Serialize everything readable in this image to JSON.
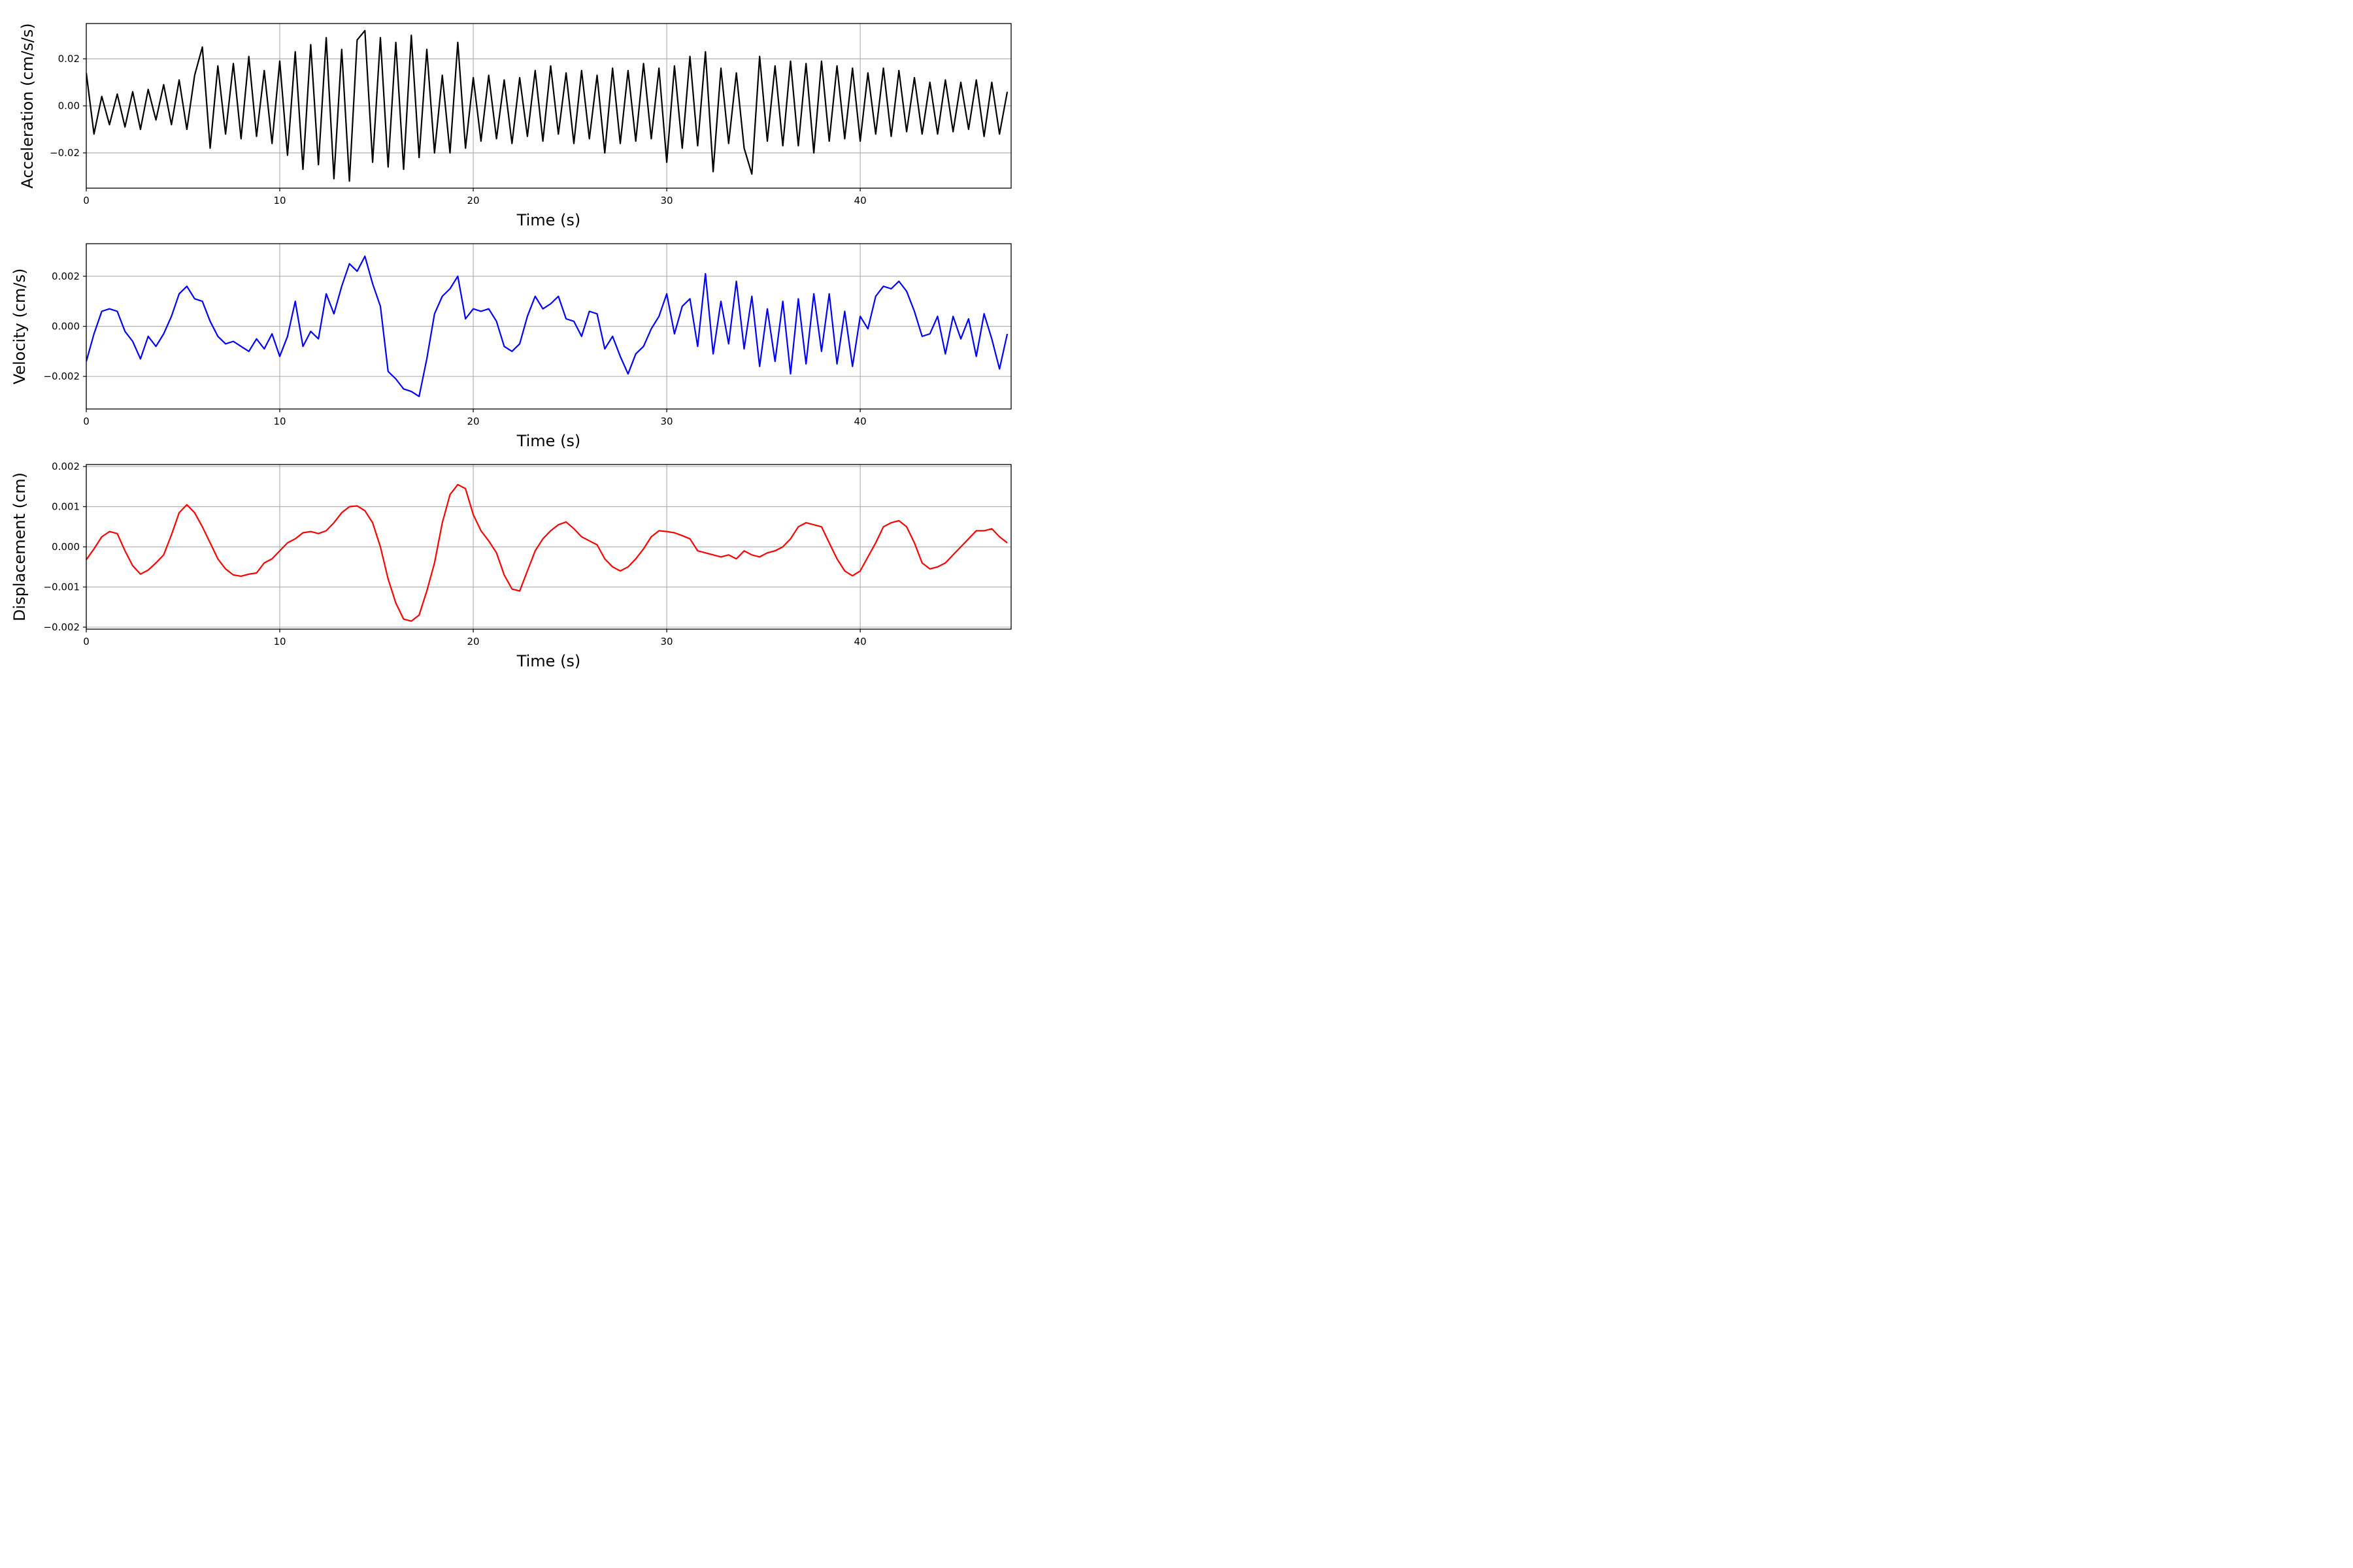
{
  "chart_data": [
    {
      "type": "line",
      "xlabel": "Time (s)",
      "ylabel": "Acceleration (cm/s/s)",
      "xlim": [
        0,
        47.8
      ],
      "ylim": [
        -0.035,
        0.035
      ],
      "xticks": [
        0,
        10,
        20,
        30,
        40
      ],
      "xtick_labels": [
        "0",
        "10",
        "20",
        "30",
        "40"
      ],
      "yticks": [
        -0.02,
        0.0,
        0.02
      ],
      "ytick_labels": [
        "−0.02",
        "0.00",
        "0.02"
      ],
      "grid": true,
      "series": [
        {
          "color": "#000000",
          "x": [
            0,
            0.4,
            0.8,
            1.2,
            1.6,
            2.0,
            2.4,
            2.8,
            3.2,
            3.6,
            4.0,
            4.4,
            4.8,
            5.2,
            5.6,
            6.0,
            6.4,
            6.8,
            7.2,
            7.6,
            8.0,
            8.4,
            8.8,
            9.2,
            9.6,
            10.0,
            10.4,
            10.8,
            11.2,
            11.6,
            12.0,
            12.4,
            12.8,
            13.2,
            13.6,
            14.0,
            14.4,
            14.8,
            15.2,
            15.6,
            16.0,
            16.4,
            16.8,
            17.2,
            17.6,
            18.0,
            18.4,
            18.8,
            19.2,
            19.6,
            20.0,
            20.4,
            20.8,
            21.2,
            21.6,
            22.0,
            22.4,
            22.8,
            23.2,
            23.6,
            24.0,
            24.4,
            24.8,
            25.2,
            25.6,
            26.0,
            26.4,
            26.8,
            27.2,
            27.6,
            28.0,
            28.4,
            28.8,
            29.2,
            29.6,
            30.0,
            30.4,
            30.8,
            31.2,
            31.6,
            32.0,
            32.4,
            32.8,
            33.2,
            33.6,
            34.0,
            34.4,
            34.8,
            35.2,
            35.6,
            36.0,
            36.4,
            36.8,
            37.2,
            37.6,
            38.0,
            38.4,
            38.8,
            39.2,
            39.6,
            40.0,
            40.4,
            40.8,
            41.2,
            41.6,
            42.0,
            42.4,
            42.8,
            43.2,
            43.6,
            44.0,
            44.4,
            44.8,
            45.2,
            45.6,
            46.0,
            46.4,
            46.8,
            47.2,
            47.6
          ],
          "y": [
            0.014,
            -0.012,
            0.004,
            -0.008,
            0.005,
            -0.009,
            0.006,
            -0.01,
            0.007,
            -0.006,
            0.009,
            -0.008,
            0.011,
            -0.01,
            0.013,
            0.025,
            -0.018,
            0.017,
            -0.012,
            0.018,
            -0.014,
            0.021,
            -0.013,
            0.015,
            -0.016,
            0.019,
            -0.021,
            0.023,
            -0.027,
            0.026,
            -0.025,
            0.029,
            -0.031,
            0.024,
            -0.032,
            0.028,
            0.032,
            -0.024,
            0.029,
            -0.026,
            0.027,
            -0.027,
            0.03,
            -0.022,
            0.024,
            -0.02,
            0.013,
            -0.02,
            0.027,
            -0.018,
            0.012,
            -0.015,
            0.013,
            -0.014,
            0.011,
            -0.016,
            0.012,
            -0.013,
            0.015,
            -0.015,
            0.017,
            -0.012,
            0.014,
            -0.016,
            0.015,
            -0.014,
            0.013,
            -0.02,
            0.016,
            -0.016,
            0.015,
            -0.015,
            0.018,
            -0.014,
            0.016,
            -0.024,
            0.017,
            -0.018,
            0.021,
            -0.017,
            0.023,
            -0.028,
            0.016,
            -0.016,
            0.014,
            -0.018,
            -0.029,
            0.021,
            -0.015,
            0.017,
            -0.017,
            0.019,
            -0.017,
            0.018,
            -0.02,
            0.019,
            -0.015,
            0.017,
            -0.014,
            0.016,
            -0.015,
            0.014,
            -0.012,
            0.016,
            -0.013,
            0.015,
            -0.011,
            0.012,
            -0.012,
            0.01,
            -0.012,
            0.011,
            -0.011,
            0.01,
            -0.01,
            0.011,
            -0.013,
            0.01,
            -0.012,
            0.006
          ]
        }
      ]
    },
    {
      "type": "line",
      "xlabel": "Time (s)",
      "ylabel": "Velocity (cm/s)",
      "xlim": [
        0,
        47.8
      ],
      "ylim": [
        -0.0033,
        0.0033
      ],
      "xticks": [
        0,
        10,
        20,
        30,
        40
      ],
      "xtick_labels": [
        "0",
        "10",
        "20",
        "30",
        "40"
      ],
      "yticks": [
        -0.002,
        0.0,
        0.002
      ],
      "ytick_labels": [
        "−0.002",
        "0.000",
        "0.002"
      ],
      "grid": true,
      "series": [
        {
          "color": "#0000ff",
          "x": [
            0,
            0.4,
            0.8,
            1.2,
            1.6,
            2.0,
            2.4,
            2.8,
            3.2,
            3.6,
            4.0,
            4.4,
            4.8,
            5.2,
            5.6,
            6.0,
            6.4,
            6.8,
            7.2,
            7.6,
            8.0,
            8.4,
            8.8,
            9.2,
            9.6,
            10.0,
            10.4,
            10.8,
            11.2,
            11.6,
            12.0,
            12.4,
            12.8,
            13.2,
            13.6,
            14.0,
            14.4,
            14.8,
            15.2,
            15.6,
            16.0,
            16.4,
            16.8,
            17.2,
            17.6,
            18.0,
            18.4,
            18.8,
            19.2,
            19.6,
            20.0,
            20.4,
            20.8,
            21.2,
            21.6,
            22.0,
            22.4,
            22.8,
            23.2,
            23.6,
            24.0,
            24.4,
            24.8,
            25.2,
            25.6,
            26.0,
            26.4,
            26.8,
            27.2,
            27.6,
            28.0,
            28.4,
            28.8,
            29.2,
            29.6,
            30.0,
            30.4,
            30.8,
            31.2,
            31.6,
            32.0,
            32.4,
            32.8,
            33.2,
            33.6,
            34.0,
            34.4,
            34.8,
            35.2,
            35.6,
            36.0,
            36.4,
            36.8,
            37.2,
            37.6,
            38.0,
            38.4,
            38.8,
            39.2,
            39.6,
            40.0,
            40.4,
            40.8,
            41.2,
            41.6,
            42.0,
            42.4,
            42.8,
            43.2,
            43.6,
            44.0,
            44.4,
            44.8,
            45.2,
            45.6,
            46.0,
            46.4,
            46.8,
            47.2,
            47.6
          ],
          "y": [
            -0.0014,
            -0.0003,
            0.0006,
            0.0007,
            0.0006,
            -0.0002,
            -0.0006,
            -0.0013,
            -0.0004,
            -0.0008,
            -0.0003,
            0.0004,
            0.0013,
            0.0016,
            0.0011,
            0.001,
            0.0002,
            -0.0004,
            -0.0007,
            -0.0006,
            -0.0008,
            -0.001,
            -0.0005,
            -0.0009,
            -0.0003,
            -0.0012,
            -0.0004,
            0.001,
            -0.0008,
            -0.0002,
            -0.0005,
            0.0013,
            0.0005,
            0.0016,
            0.0025,
            0.0022,
            0.0028,
            0.0017,
            0.0008,
            -0.0018,
            -0.0021,
            -0.0025,
            -0.0026,
            -0.0028,
            -0.0013,
            0.0005,
            0.0012,
            0.0015,
            0.002,
            0.0003,
            0.0007,
            0.0006,
            0.0007,
            0.0002,
            -0.0008,
            -0.001,
            -0.0007,
            0.0004,
            0.0012,
            0.0007,
            0.0009,
            0.0012,
            0.0003,
            0.0002,
            -0.0004,
            0.0006,
            0.0005,
            -0.0009,
            -0.0004,
            -0.0012,
            -0.0019,
            -0.0011,
            -0.0008,
            -0.0001,
            0.0004,
            0.0013,
            -0.0003,
            0.0008,
            0.0011,
            -0.0008,
            0.0021,
            -0.0011,
            0.001,
            -0.0007,
            0.0018,
            -0.0009,
            0.0012,
            -0.0016,
            0.0007,
            -0.0014,
            0.001,
            -0.0019,
            0.0011,
            -0.0015,
            0.0013,
            -0.001,
            0.0013,
            -0.0015,
            0.0006,
            -0.0016,
            0.0004,
            -0.0001,
            0.0012,
            0.0016,
            0.0015,
            0.0018,
            0.0014,
            0.0006,
            -0.0004,
            -0.0003,
            0.0004,
            -0.0011,
            0.0004,
            -0.0005,
            0.0003,
            -0.0012,
            0.0005,
            -0.0005,
            -0.0017,
            -0.0003
          ]
        }
      ]
    },
    {
      "type": "line",
      "xlabel": "Time (s)",
      "ylabel": "Displacement (cm)",
      "xlim": [
        0,
        47.8
      ],
      "ylim": [
        -0.00205,
        0.00205
      ],
      "xticks": [
        0,
        10,
        20,
        30,
        40
      ],
      "xtick_labels": [
        "0",
        "10",
        "20",
        "30",
        "40"
      ],
      "yticks": [
        -0.002,
        -0.001,
        0.0,
        0.001,
        0.002
      ],
      "ytick_labels": [
        "−0.002",
        "−0.001",
        "0.000",
        "0.001",
        "0.002"
      ],
      "grid": true,
      "series": [
        {
          "color": "#ff0000",
          "x": [
            0,
            0.4,
            0.8,
            1.2,
            1.6,
            2.0,
            2.4,
            2.8,
            3.2,
            3.6,
            4.0,
            4.4,
            4.8,
            5.2,
            5.6,
            6.0,
            6.4,
            6.8,
            7.2,
            7.6,
            8.0,
            8.4,
            8.8,
            9.2,
            9.6,
            10.0,
            10.4,
            10.8,
            11.2,
            11.6,
            12.0,
            12.4,
            12.8,
            13.2,
            13.6,
            14.0,
            14.4,
            14.8,
            15.2,
            15.6,
            16.0,
            16.4,
            16.8,
            17.2,
            17.6,
            18.0,
            18.4,
            18.8,
            19.2,
            19.6,
            20.0,
            20.4,
            20.8,
            21.2,
            21.6,
            22.0,
            22.4,
            22.8,
            23.2,
            23.6,
            24.0,
            24.4,
            24.8,
            25.2,
            25.6,
            26.0,
            26.4,
            26.8,
            27.2,
            27.6,
            28.0,
            28.4,
            28.8,
            29.2,
            29.6,
            30.0,
            30.4,
            30.8,
            31.2,
            31.6,
            32.0,
            32.4,
            32.8,
            33.2,
            33.6,
            34.0,
            34.4,
            34.8,
            35.2,
            35.6,
            36.0,
            36.4,
            36.8,
            37.2,
            37.6,
            38.0,
            38.4,
            38.8,
            39.2,
            39.6,
            40.0,
            40.4,
            40.8,
            41.2,
            41.6,
            42.0,
            42.4,
            42.8,
            43.2,
            43.6,
            44.0,
            44.4,
            44.8,
            45.2,
            45.6,
            46.0,
            46.4,
            46.8,
            47.2,
            47.6
          ],
          "y": [
            -0.00032,
            -5e-05,
            0.00025,
            0.00038,
            0.00033,
            -0.0001,
            -0.00047,
            -0.00068,
            -0.00058,
            -0.0004,
            -0.0002,
            0.0003,
            0.00085,
            0.00105,
            0.00085,
            0.0005,
            0.0001,
            -0.0003,
            -0.00055,
            -0.0007,
            -0.00073,
            -0.00068,
            -0.00065,
            -0.0004,
            -0.0003,
            -0.0001,
            0.0001,
            0.0002,
            0.00035,
            0.00038,
            0.00033,
            0.0004,
            0.0006,
            0.00085,
            0.001,
            0.00102,
            0.0009,
            0.0006,
            0.0,
            -0.0008,
            -0.0014,
            -0.0018,
            -0.00185,
            -0.0017,
            -0.0011,
            -0.0004,
            0.0006,
            0.0013,
            0.00155,
            0.00145,
            0.0008,
            0.0004,
            0.00015,
            -0.00015,
            -0.0007,
            -0.00105,
            -0.0011,
            -0.0006,
            -0.0001,
            0.0002,
            0.0004,
            0.00055,
            0.00062,
            0.00045,
            0.00025,
            0.00015,
            5e-05,
            -0.0003,
            -0.0005,
            -0.0006,
            -0.0005,
            -0.0003,
            -5e-05,
            0.00025,
            0.0004,
            0.00038,
            0.00035,
            0.00028,
            0.0002,
            -0.0001,
            -0.00015,
            -0.0002,
            -0.00025,
            -0.0002,
            -0.0003,
            -0.0001,
            -0.0002,
            -0.00025,
            -0.00015,
            -0.0001,
            0.0,
            0.0002,
            0.0005,
            0.0006,
            0.00055,
            0.0005,
            0.0001,
            -0.0003,
            -0.0006,
            -0.00072,
            -0.0006,
            -0.00025,
            0.0001,
            0.0005,
            0.0006,
            0.00065,
            0.0005,
            0.0001,
            -0.0004,
            -0.00055,
            -0.0005,
            -0.0004,
            -0.0002,
            0.0,
            0.0002,
            0.0004,
            0.0004,
            0.00045,
            0.00025,
            0.0001
          ]
        }
      ]
    }
  ]
}
